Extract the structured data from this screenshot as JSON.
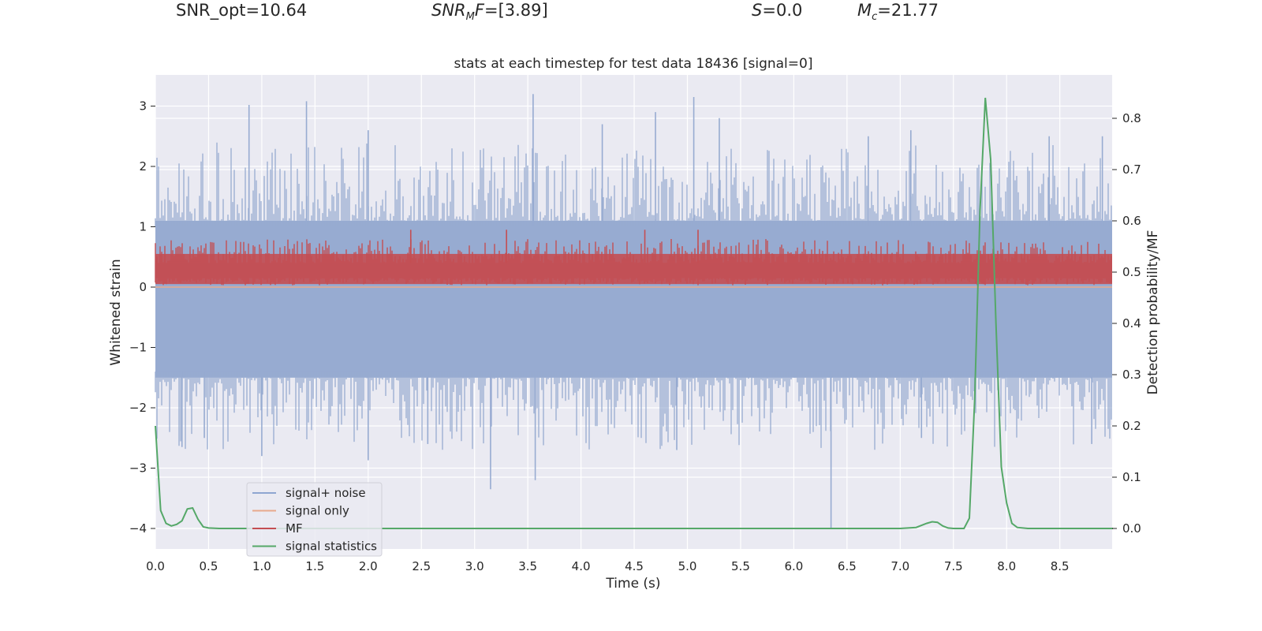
{
  "header": {
    "snr_opt": {
      "label": "SNR_opt",
      "value": "10.64"
    },
    "snr_mf": {
      "label": "SNR",
      "sub": "M",
      "tail": "F",
      "value": "[3.89]"
    },
    "s": {
      "label": "S",
      "value": "0.0"
    },
    "mc": {
      "label": "M",
      "sub": "c",
      "value": "21.77"
    }
  },
  "chart_data": {
    "type": "line",
    "title": "stats at each timestep for test data 18436 [signal=0]",
    "xlabel": "Time (s)",
    "ylabel": "Whitened strain",
    "y2label": "Detection probability/MF",
    "xlim": [
      0,
      9
    ],
    "ylim": [
      -4.35,
      3.55
    ],
    "y2lim": [
      -0.04,
      0.89
    ],
    "xticks": [
      "0.0",
      "0.5",
      "1.0",
      "1.5",
      "2.0",
      "2.5",
      "3.0",
      "3.5",
      "4.0",
      "4.5",
      "5.0",
      "5.5",
      "6.0",
      "6.5",
      "7.0",
      "7.5",
      "8.0",
      "8.5"
    ],
    "yticks": [
      "3",
      "2",
      "1",
      "0",
      "−1",
      "−2",
      "−3",
      "−4"
    ],
    "y2ticks": [
      "0.8",
      "0.7",
      "0.6",
      "0.5",
      "0.4",
      "0.3",
      "0.2",
      "0.1",
      "0.0"
    ],
    "legend": {
      "position": "lower-left",
      "entries": [
        {
          "label": "signal+ noise",
          "color": "#8fa6d1"
        },
        {
          "label": "signal only",
          "color": "#e8a98c"
        },
        {
          "label": "MF",
          "color": "#c44e52"
        },
        {
          "label": "signal statistics",
          "color": "#55a868"
        }
      ]
    },
    "series": [
      {
        "name": "signal+ noise",
        "axis": "left",
        "band": [
          -1.5,
          1.1
        ],
        "spikes": [
          {
            "x": 0.88,
            "y": 3.02
          },
          {
            "x": 1.42,
            "y": 3.08
          },
          {
            "x": 2.0,
            "y": 2.6
          },
          {
            "x": 3.55,
            "y": 3.2
          },
          {
            "x": 4.2,
            "y": 2.7
          },
          {
            "x": 4.7,
            "y": 2.9
          },
          {
            "x": 5.06,
            "y": 3.15
          },
          {
            "x": 5.3,
            "y": 2.8
          },
          {
            "x": 6.7,
            "y": 2.5
          },
          {
            "x": 7.1,
            "y": 2.6
          },
          {
            "x": 8.4,
            "y": 2.5
          },
          {
            "x": 8.9,
            "y": 2.5
          },
          {
            "x": 0.25,
            "y": -2.65
          },
          {
            "x": 0.46,
            "y": -2.5
          },
          {
            "x": 1.0,
            "y": -2.8
          },
          {
            "x": 2.0,
            "y": -2.87
          },
          {
            "x": 2.56,
            "y": -2.6
          },
          {
            "x": 3.15,
            "y": -3.35
          },
          {
            "x": 3.57,
            "y": -3.2
          },
          {
            "x": 4.9,
            "y": -2.7
          },
          {
            "x": 6.35,
            "y": -4.0
          },
          {
            "x": 7.2,
            "y": -2.5
          },
          {
            "x": 8.8,
            "y": -2.6
          }
        ]
      },
      {
        "name": "signal only",
        "axis": "left",
        "x": [
          0,
          9
        ],
        "y": [
          0.0,
          0.0
        ]
      },
      {
        "name": "MF",
        "axis": "left",
        "band": [
          0.05,
          0.7
        ],
        "peak": 0.95
      },
      {
        "name": "signal statistics",
        "axis": "right",
        "x": [
          0.0,
          0.05,
          0.1,
          0.15,
          0.2,
          0.25,
          0.3,
          0.35,
          0.4,
          0.45,
          0.5,
          0.6,
          1.0,
          2.0,
          3.0,
          4.0,
          5.0,
          6.0,
          7.0,
          7.15,
          7.25,
          7.3,
          7.35,
          7.4,
          7.45,
          7.5,
          7.6,
          7.65,
          7.7,
          7.75,
          7.8,
          7.85,
          7.9,
          7.95,
          8.0,
          8.05,
          8.1,
          8.2,
          9.0
        ],
        "y": [
          0.2,
          0.035,
          0.01,
          0.005,
          0.008,
          0.015,
          0.038,
          0.04,
          0.018,
          0.003,
          0.001,
          0.0,
          0.0,
          0.0,
          0.0,
          0.0,
          0.0,
          0.0,
          0.0,
          0.002,
          0.01,
          0.013,
          0.012,
          0.005,
          0.001,
          0.0,
          0.0,
          0.02,
          0.25,
          0.62,
          0.84,
          0.72,
          0.4,
          0.12,
          0.05,
          0.01,
          0.002,
          0.0,
          0.0
        ]
      }
    ]
  }
}
